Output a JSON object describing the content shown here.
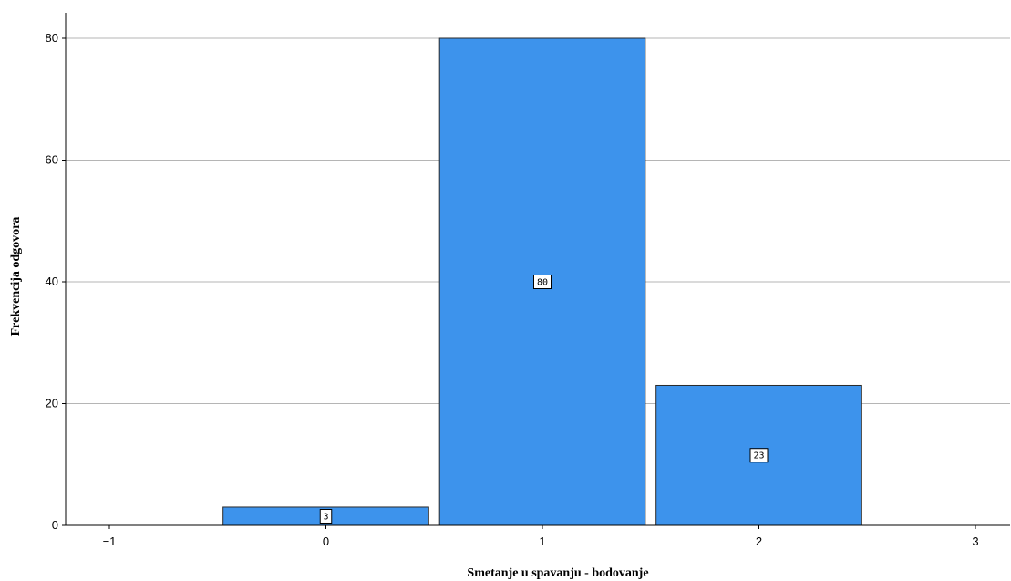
{
  "chart_data": {
    "type": "bar",
    "title": "",
    "xlabel": "Smetanje u spavanju - bodovanje",
    "ylabel": "Frekvencija odgovora",
    "xlim": [
      -1,
      3
    ],
    "ylim": [
      0,
      80
    ],
    "x_ticks": [
      "−1",
      "0",
      "1",
      "2",
      "3"
    ],
    "y_ticks": [
      "0",
      "20",
      "40",
      "60",
      "80"
    ],
    "grid": "horizontal",
    "categories": [
      "0",
      "1",
      "2"
    ],
    "x": [
      0,
      1,
      2
    ],
    "values": [
      3,
      80,
      23
    ],
    "data_labels": [
      "3",
      "80",
      "23"
    ],
    "bar_color": "#3d93ec",
    "bar_edge_color": "#2a2a2a"
  }
}
